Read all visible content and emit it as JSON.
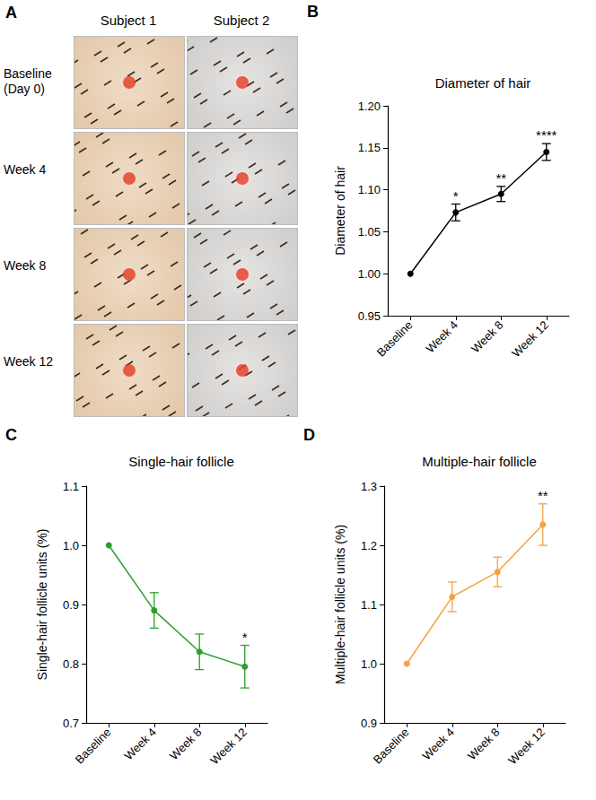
{
  "photo_panel": {
    "panel": "A",
    "columns": [
      "Subject 1",
      "Subject 2"
    ],
    "rows": [
      "Baseline (Day 0)",
      "Week 4",
      "Week 8",
      "Week 12"
    ]
  },
  "chart_data": [
    {
      "panel": "B",
      "type": "line",
      "title": "Diameter of hair",
      "y_label": "Diameter of hair",
      "categories": [
        "Baseline",
        "Week 4",
        "Week 8",
        "Week 12"
      ],
      "values": [
        1.0,
        1.073,
        1.095,
        1.145
      ],
      "errors": [
        0,
        0.01,
        0.009,
        0.01
      ],
      "significance": [
        null,
        "*",
        "**",
        "****"
      ],
      "color": "#000000",
      "marker": "circle",
      "line_style": "solid",
      "ylim": [
        0.95,
        1.2
      ],
      "yticks": [
        0.95,
        {
          "value": 1,
          "label": "1.00"
        },
        1.05,
        {
          "value": 1.1,
          "label": "1.10"
        },
        1.15,
        {
          "value": 1.2,
          "label": "1.20"
        }
      ],
      "grid": false
    },
    {
      "panel": "C",
      "type": "line",
      "title": "Single-hair follicle",
      "y_label": "Single-hair follicle units (%)",
      "categories": [
        "Baseline",
        "Week 4",
        "Week 8",
        "Week 12"
      ],
      "values": [
        1.0,
        0.89,
        0.82,
        0.795
      ],
      "errors": [
        0,
        0.03,
        0.03,
        0.036
      ],
      "significance": [
        null,
        null,
        null,
        "*"
      ],
      "color": "#2ca02c",
      "marker": "circle",
      "line_style": "solid",
      "ylim": [
        0.7,
        1.1
      ],
      "yticks": [
        0.7,
        0.8,
        0.9,
        {
          "value": 1,
          "label": "1.0"
        },
        1.1
      ],
      "grid": false
    },
    {
      "panel": "D",
      "type": "line",
      "title": "Multiple-hair follicle",
      "y_label": "Multiple-hair follicle units (%)",
      "categories": [
        "Baseline",
        "Week 4",
        "Week 8",
        "Week 12"
      ],
      "values": [
        1.0,
        1.113,
        1.155,
        1.235
      ],
      "errors": [
        0,
        0.025,
        0.025,
        0.035
      ],
      "significance": [
        null,
        null,
        null,
        "**"
      ],
      "color": "#f5a142",
      "marker": "circle",
      "line_style": "solid",
      "ylim": [
        0.9,
        1.3
      ],
      "yticks": [
        0.9,
        {
          "value": 1,
          "label": "1.0"
        },
        1.1,
        1.2,
        1.3
      ],
      "grid": false
    }
  ]
}
